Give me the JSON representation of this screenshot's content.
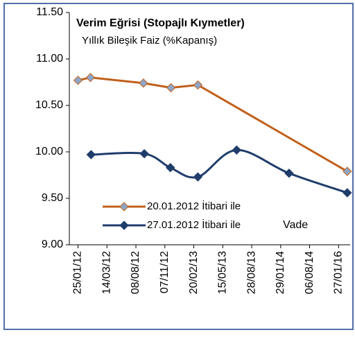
{
  "chart_data": {
    "type": "line",
    "title": "Verim Eğrisi (Stopajlı Kıymetler)",
    "subtitle": "Yıllık Bileşik Faiz (%Kapanış)",
    "x_label": "Vade",
    "xlim": [
      -0.3,
      9.4
    ],
    "xticks": [
      {
        "value": 0,
        "label": "25/01/12"
      },
      {
        "value": 1,
        "label": "14/03/12"
      },
      {
        "value": 2,
        "label": "08/08/12"
      },
      {
        "value": 3,
        "label": "07/11/12"
      },
      {
        "value": 4,
        "label": "20/02/13"
      },
      {
        "value": 5,
        "label": "15/05/13"
      },
      {
        "value": 6,
        "label": "28/08/13"
      },
      {
        "value": 7,
        "label": "29/01/14"
      },
      {
        "value": 8,
        "label": "06/08/14"
      },
      {
        "value": 9,
        "label": "27/01/16"
      }
    ],
    "ylim": [
      9.0,
      11.5
    ],
    "yticks": [
      {
        "value": 9.0,
        "label": "9.00"
      },
      {
        "value": 9.5,
        "label": "9.50"
      },
      {
        "value": 10.0,
        "label": "10.00"
      },
      {
        "value": 10.5,
        "label": "10.50"
      },
      {
        "value": 11.0,
        "label": "11.00"
      },
      {
        "value": 11.5,
        "label": "11.50"
      }
    ],
    "grid": false,
    "series": [
      {
        "name": "20.01.2012 İtibari ile",
        "color": "#c0601a",
        "marker_color": "#8ea6c8",
        "smooth": false,
        "x": [
          0,
          0.43,
          2.26,
          3.21,
          4.14,
          9.3
        ],
        "values": [
          10.77,
          10.8,
          10.74,
          10.69,
          10.72,
          9.79
        ]
      },
      {
        "name": "27.01.2012 İtibari ile",
        "color": "#1f3d6b",
        "marker_color": "#1f3d6b",
        "smooth": true,
        "x": [
          0.45,
          2.29,
          3.19,
          4.14,
          5.48,
          7.29,
          9.3
        ],
        "values": [
          9.97,
          9.98,
          9.83,
          9.73,
          10.02,
          9.77,
          9.56
        ]
      }
    ]
  }
}
